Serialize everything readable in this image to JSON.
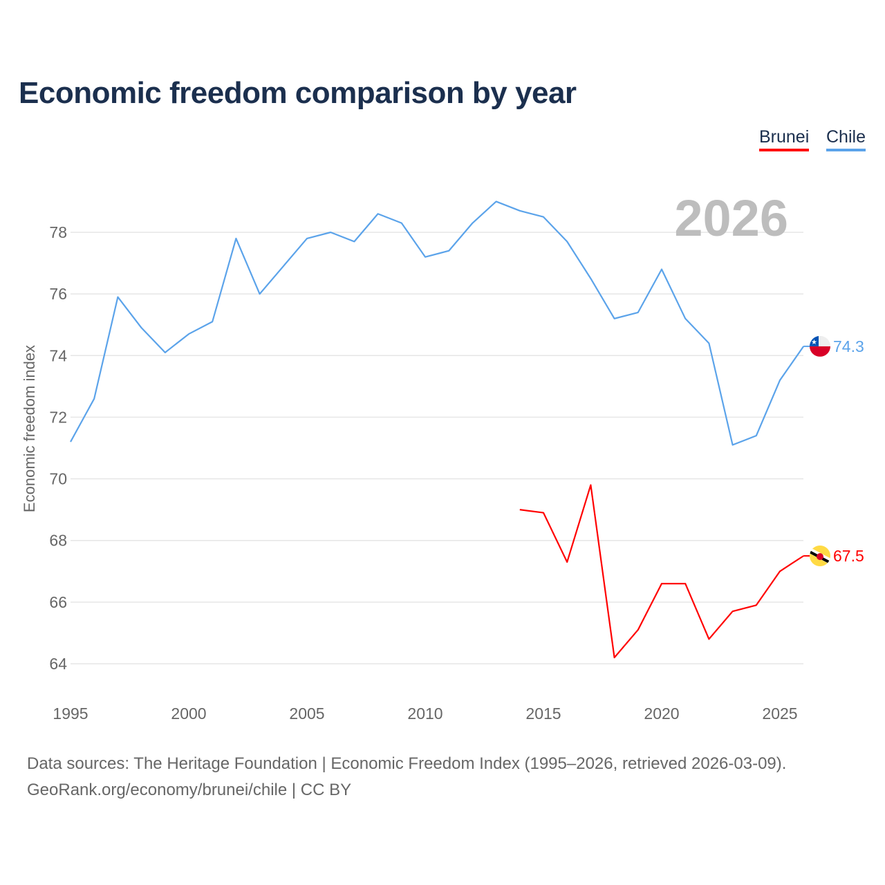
{
  "chart_data": {
    "type": "line",
    "title": "Economic freedom comparison by year",
    "xlabel": "",
    "ylabel": "Economic freedom index",
    "xlim": [
      1995,
      2026
    ],
    "ylim": [
      63,
      80
    ],
    "x_ticks": [
      1995,
      2000,
      2005,
      2010,
      2015,
      2020,
      2025
    ],
    "y_ticks": [
      64,
      66,
      68,
      70,
      72,
      74,
      76,
      78
    ],
    "grid": true,
    "legend_position": "top-right",
    "year_watermark": "2026",
    "series": [
      {
        "name": "Brunei",
        "color": "#ff0000",
        "flag": "brunei-flag",
        "end_label": "67.5",
        "x": [
          2014,
          2015,
          2016,
          2017,
          2018,
          2019,
          2020,
          2021,
          2022,
          2023,
          2024,
          2025,
          2026
        ],
        "values": [
          69.0,
          68.9,
          67.3,
          69.8,
          64.2,
          65.1,
          66.6,
          66.6,
          64.8,
          65.7,
          65.9,
          67.0,
          67.5
        ]
      },
      {
        "name": "Chile",
        "color": "#5ba3ea",
        "flag": "chile-flag",
        "end_label": "74.3",
        "x": [
          1995,
          1996,
          1997,
          1998,
          1999,
          2000,
          2001,
          2002,
          2003,
          2004,
          2005,
          2006,
          2007,
          2008,
          2009,
          2010,
          2011,
          2012,
          2013,
          2014,
          2015,
          2016,
          2017,
          2018,
          2019,
          2020,
          2021,
          2022,
          2023,
          2024,
          2025,
          2026
        ],
        "values": [
          71.2,
          72.6,
          75.9,
          74.9,
          74.1,
          74.7,
          75.1,
          77.8,
          76.0,
          76.9,
          77.8,
          78.0,
          77.7,
          78.6,
          78.3,
          77.2,
          77.4,
          78.3,
          79.0,
          78.7,
          78.5,
          77.7,
          76.5,
          75.2,
          75.4,
          76.8,
          75.2,
          74.4,
          71.1,
          71.4,
          73.2,
          74.3
        ]
      }
    ]
  },
  "footer": {
    "line1": "Data sources: The Heritage Foundation | Economic Freedom Index (1995–2026, retrieved 2026-03-09).",
    "line2": "GeoRank.org/economy/brunei/chile | CC BY"
  }
}
